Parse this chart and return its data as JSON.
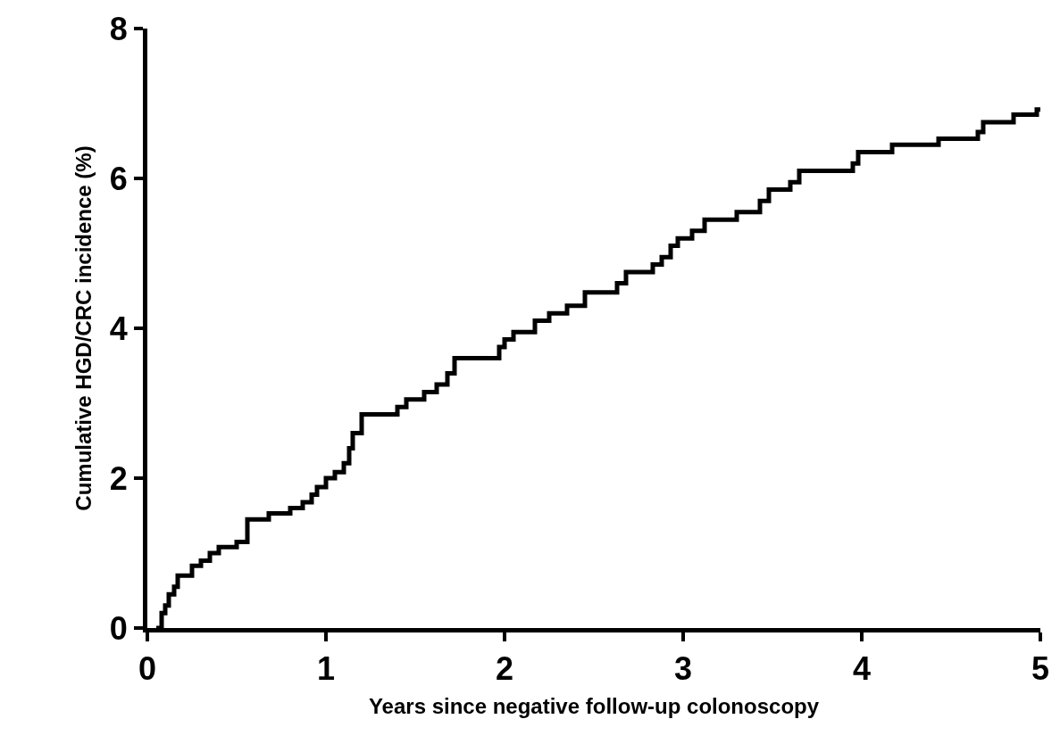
{
  "chart_data": {
    "type": "step",
    "xlabel": "Years since negative follow-up colonoscopy",
    "ylabel": "Cumulative HGD/CRC incidence (%)",
    "x": [
      0.05,
      0.08,
      0.1,
      0.12,
      0.15,
      0.17,
      0.25,
      0.3,
      0.35,
      0.4,
      0.5,
      0.56,
      0.68,
      0.8,
      0.87,
      0.92,
      0.95,
      1.0,
      1.05,
      1.1,
      1.13,
      1.15,
      1.2,
      1.4,
      1.45,
      1.55,
      1.62,
      1.68,
      1.72,
      1.97,
      2.0,
      2.05,
      2.17,
      2.25,
      2.35,
      2.45,
      2.63,
      2.68,
      2.83,
      2.88,
      2.93,
      2.97,
      3.05,
      3.12,
      3.3,
      3.43,
      3.48,
      3.6,
      3.65,
      3.95,
      3.98,
      4.17,
      4.43,
      4.65,
      4.68,
      4.85,
      4.98,
      5.0
    ],
    "series": [
      {
        "color": "#000000",
        "values": [
          0,
          0.2,
          0.3,
          0.45,
          0.55,
          0.7,
          0.83,
          0.9,
          1.0,
          1.08,
          1.15,
          1.45,
          1.53,
          1.6,
          1.68,
          1.78,
          1.88,
          2.0,
          2.08,
          2.2,
          2.4,
          2.6,
          2.85,
          2.95,
          3.05,
          3.15,
          3.25,
          3.4,
          3.6,
          3.75,
          3.85,
          3.95,
          4.1,
          4.2,
          4.3,
          4.48,
          4.6,
          4.75,
          4.85,
          4.95,
          5.1,
          5.2,
          5.3,
          5.45,
          5.55,
          5.7,
          5.85,
          5.95,
          6.1,
          6.2,
          6.35,
          6.45,
          6.53,
          6.62,
          6.75,
          6.85,
          6.92,
          6.95
        ]
      }
    ],
    "xlim": [
      0,
      5
    ],
    "xticks": [
      0,
      1,
      2,
      3,
      4,
      5
    ],
    "ylim": [
      0,
      8
    ],
    "yticks": [
      0,
      2,
      4,
      6,
      8
    ]
  }
}
